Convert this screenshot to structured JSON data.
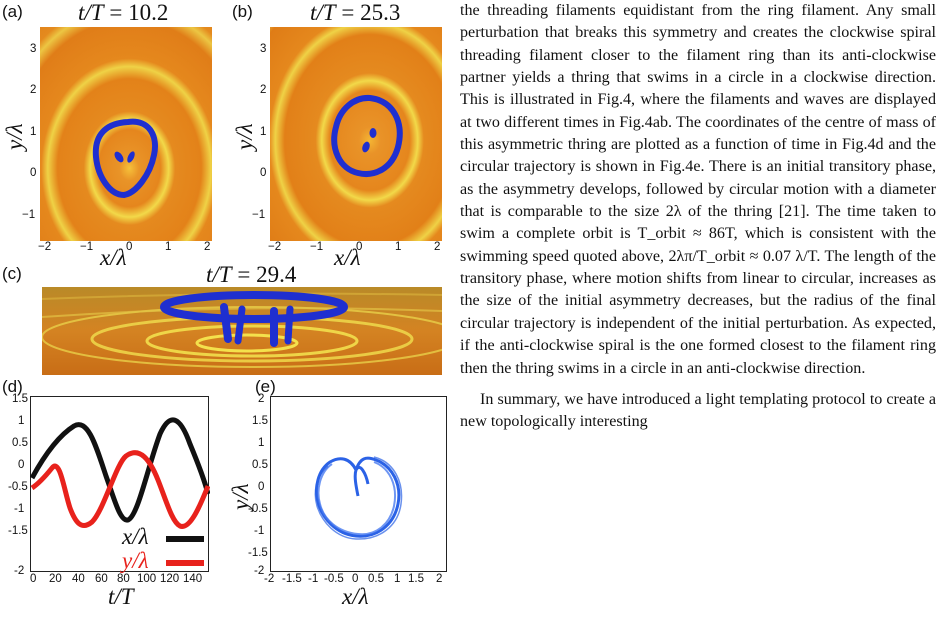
{
  "figure": {
    "panels": {
      "a": {
        "label": "(a)",
        "title_lhs": "t/T",
        "title_eq": " = ",
        "title_val": "10.2"
      },
      "b": {
        "label": "(b)",
        "title_lhs": "t/T",
        "title_eq": " = ",
        "title_val": "25.3"
      },
      "c": {
        "label": "(c)",
        "title_lhs": "t/T",
        "title_eq": " = ",
        "title_val": "29.4"
      },
      "d": {
        "label": "(d)"
      },
      "e": {
        "label": "(e)"
      }
    },
    "axes_ab": {
      "xlabel": "x/λ",
      "ylabel": "y/λ",
      "xticks": [
        "−2",
        "−1",
        "0",
        "1",
        "2"
      ],
      "yticks_a": [
        "3",
        "2",
        "1",
        "0",
        "−1"
      ],
      "yticks_b": [
        "3",
        "2",
        "1",
        "0",
        "−1"
      ]
    },
    "axes_d": {
      "xlabel": "t/T",
      "xticks": [
        "0",
        "20",
        "40",
        "60",
        "80",
        "100",
        "120",
        "140"
      ],
      "yticks": [
        "1.5",
        "1",
        "0.5",
        "0",
        "-0.5",
        "-1",
        "-1.5",
        "-2"
      ],
      "legend": [
        {
          "label": "x/λ",
          "color": "#111111"
        },
        {
          "label": "y/λ",
          "color": "#e8221c"
        }
      ]
    },
    "axes_e": {
      "xlabel": "x/λ",
      "ylabel": "y/λ",
      "xticks": [
        "-2",
        "-1.5",
        "-1",
        "-0.5",
        "0",
        "0.5",
        "1",
        "1.5",
        "2"
      ],
      "yticks": [
        "2",
        "1.5",
        "1",
        "0.5",
        "0",
        "-0.5",
        "-1",
        "-1.5",
        "-2"
      ]
    },
    "colors": {
      "field_orange": "#e58a1f",
      "wave_yellow": "#f2e34a",
      "filament_blue": "#1f2fd0",
      "trajectory_blue": "#2b62e6"
    }
  },
  "body_text": {
    "p1": "the threading filaments equidistant from the ring filament. Any small perturbation that breaks this symmetry and creates the clockwise spiral threading filament closer to the filament ring than its anti-clockwise partner yields a thring that swims in a circle in a clockwise direction. This is illustrated in Fig.4, where the filaments and waves are displayed at two different times in Fig.4ab. The coordinates of the centre of mass of this asymmetric thring are plotted as a function of time in Fig.4d and the circular trajectory is shown in Fig.4e. There is an initial transitory phase, as the asymmetry develops, followed by circular motion with a diameter that is comparable to the size 2λ of the thring [21]. The time taken to swim a complete orbit is T_orbit ≈ 86T, which is consistent with the swimming speed quoted above, 2λπ/T_orbit ≈ 0.07 λ/T. The length of the transitory phase, where motion shifts from linear to circular, increases as the size of the initial asymmetry decreases, but the radius of the final circular trajectory is independent of the initial perturbation. As expected, if the anti-clockwise spiral is the one formed closest to the filament ring then the thring swims in a circle in an anti-clockwise direction.",
    "p2": "In summary, we have introduced a light templating protocol to create a new topologically interesting"
  }
}
